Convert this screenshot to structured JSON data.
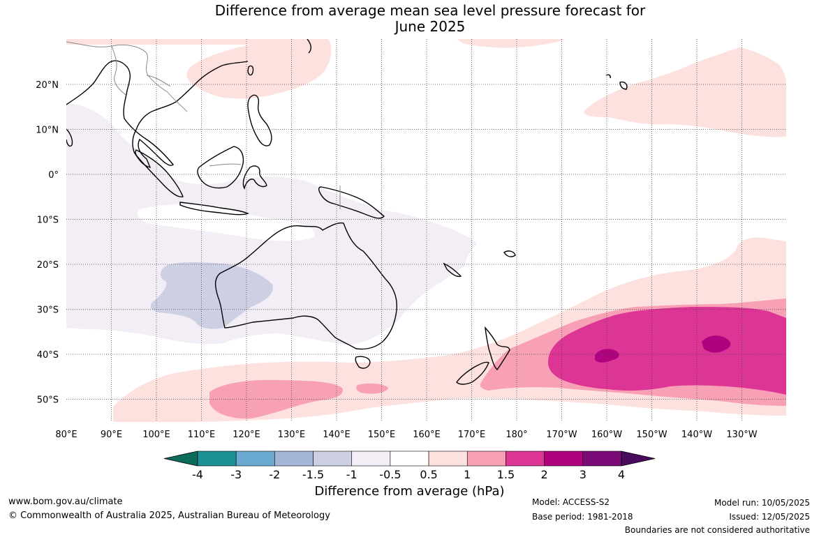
{
  "title_line1": "Difference from average mean sea level pressure forecast for",
  "title_line2": "June 2025",
  "lat_labels": [
    "20°N",
    "10°N",
    "0°",
    "10°S",
    "20°S",
    "30°S",
    "40°S",
    "50°S"
  ],
  "lon_labels": [
    "80°E",
    "90°E",
    "100°E",
    "110°E",
    "120°E",
    "130°E",
    "140°E",
    "150°E",
    "160°E",
    "170°E",
    "180°",
    "170°W",
    "160°W",
    "150°W",
    "140°W",
    "130°W"
  ],
  "legend": {
    "title": "Difference from average (hPa)",
    "tick_labels": [
      "-4",
      "-3",
      "-2",
      "-1.5",
      "-1",
      "-0.5",
      "0.5",
      "1",
      "1.5",
      "2",
      "3",
      "4"
    ],
    "colors": [
      "#0d6b5b",
      "#1b9196",
      "#6aaad1",
      "#a4b5d8",
      "#cdd0e3",
      "#f3eef6",
      "#ffffff",
      "#fde1de",
      "#f8a0b5",
      "#dc3595",
      "#b0017f",
      "#7b0b76",
      "#4a0a5e"
    ]
  },
  "footer": {
    "website": "www.bom.gov.au/climate",
    "copyright": "© Commonwealth of Australia 2025, Australian Bureau of Meteorology",
    "model": "Model: ACCESS-S2",
    "base_period": "Base period: 1981-2018",
    "model_run": "Model run: 10/05/2025",
    "issued": "Issued: 12/05/2025",
    "disclaimer": "Boundaries are not considered authoritative"
  }
}
